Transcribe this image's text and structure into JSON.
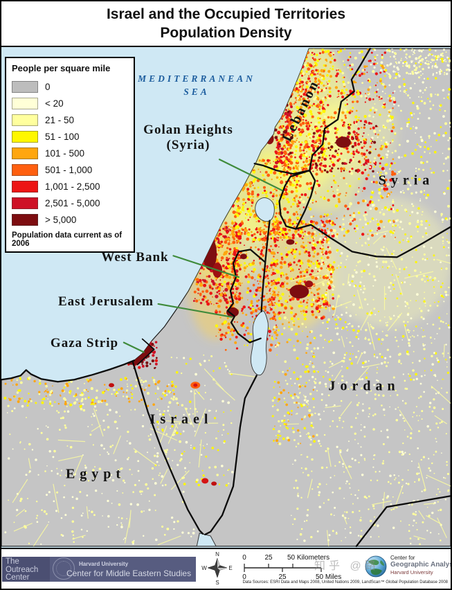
{
  "title": {
    "line1": "Israel and the Occupied Territories",
    "line2": "Population Density"
  },
  "legend": {
    "title": "People per square mile",
    "note": "Population data current as of 2006",
    "items": [
      {
        "label": "0",
        "color": "#bdbdbd"
      },
      {
        "label": "< 20",
        "color": "#ffffd7"
      },
      {
        "label": "21 - 50",
        "color": "#ffff9e"
      },
      {
        "label": "51 - 100",
        "color": "#fff700"
      },
      {
        "label": "101 - 500",
        "color": "#ffa60f"
      },
      {
        "label": "501 - 1,000",
        "color": "#ff5f0f"
      },
      {
        "label": "1,001 - 2,500",
        "color": "#ed1515"
      },
      {
        "label": "2,501 - 5,000",
        "color": "#ce1126"
      },
      {
        "label": "> 5,000",
        "color": "#7d0d10"
      }
    ]
  },
  "map_labels": {
    "sea_line1": "MEDITERRANEAN",
    "sea_line2": "SEA",
    "golan_line1": "Golan Heights",
    "golan_line2": "(Syria)",
    "lebanon": "Lebanon",
    "syria": "Syria",
    "west_bank": "West Bank",
    "east_jerusalem": "East Jerusalem",
    "gaza_strip": "Gaza Strip",
    "jordan": "Jordan",
    "israel": "Israel",
    "egypt": "Egypt"
  },
  "colors": {
    "sea": "#cfe8f4",
    "land_base": "#c5c5c5",
    "border": "#0b0b0b",
    "leader_green": "#3f8b3b",
    "sea_label_blue": "#1d5d9e"
  },
  "footer": {
    "outreach_line1": "The",
    "outreach_line2": "Outreach",
    "outreach_line3": "Center",
    "harvard_line1": "Harvard University",
    "harvard_line2": "Center for Middle Eastern Studies",
    "compass": {
      "n": "N",
      "s": "S",
      "e": "E",
      "w": "W"
    },
    "scale": {
      "km_0": "0",
      "km_25": "25",
      "km_50": "50 Kilometers",
      "mi_0": "0",
      "mi_25": "25",
      "mi_50": "50 Miles"
    },
    "cga_line1": "Center for",
    "cga_line2": "Geographic Analysis",
    "cga_line3": "Harvard University",
    "data_sources": "Data Sources:  ESRI Data and Maps 2008, United Nations 2009, LandScan™ Global Population Database 2008",
    "watermark": "知乎 @路"
  }
}
